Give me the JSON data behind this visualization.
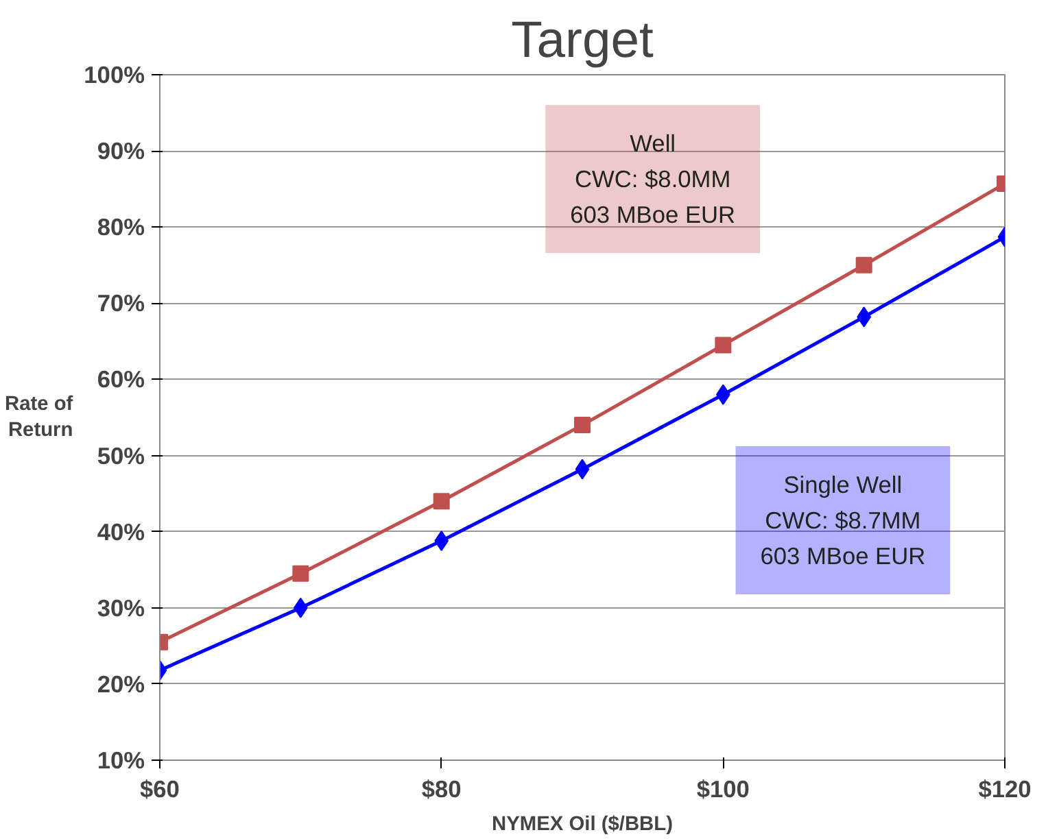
{
  "chart_data": {
    "type": "line",
    "title": "Target",
    "xlabel": "NYMEX Oil ($/BBL)",
    "ylabel": "Rate of\nReturn",
    "x": [
      60,
      70,
      80,
      90,
      100,
      110,
      120
    ],
    "series": [
      {
        "color": "#c0504d",
        "marker": "square",
        "values": [
          25.5,
          34.5,
          44,
          54,
          64.5,
          75,
          85.7
        ]
      },
      {
        "color": "#0000ff",
        "marker": "diamond",
        "values": [
          21.8,
          30,
          38.8,
          48.2,
          58,
          68.2,
          78.7
        ]
      }
    ],
    "annotations": [
      "Well\nCWC: $8.0MM\n603 MBoe EUR",
      "Single Well\nCWC: $8.7MM\n603 MBoe EUR"
    ],
    "xlim": [
      60,
      120
    ],
    "ylim": [
      10,
      100
    ],
    "xticks": [
      {
        "value": 60,
        "label": "$60"
      },
      {
        "value": 80,
        "label": "$80"
      },
      {
        "value": 100,
        "label": "$100"
      },
      {
        "value": 120,
        "label": "$120"
      }
    ],
    "yticks": [
      {
        "value": 10,
        "label": "10%"
      },
      {
        "value": 20,
        "label": "20%"
      },
      {
        "value": 30,
        "label": "30%"
      },
      {
        "value": 40,
        "label": "40%"
      },
      {
        "value": 50,
        "label": "50%"
      },
      {
        "value": 60,
        "label": "60%"
      },
      {
        "value": 70,
        "label": "70%"
      },
      {
        "value": 80,
        "label": "80%"
      },
      {
        "value": 90,
        "label": "90%"
      },
      {
        "value": 100,
        "label": "100%"
      }
    ],
    "grid": "y",
    "line_style": "solid"
  }
}
